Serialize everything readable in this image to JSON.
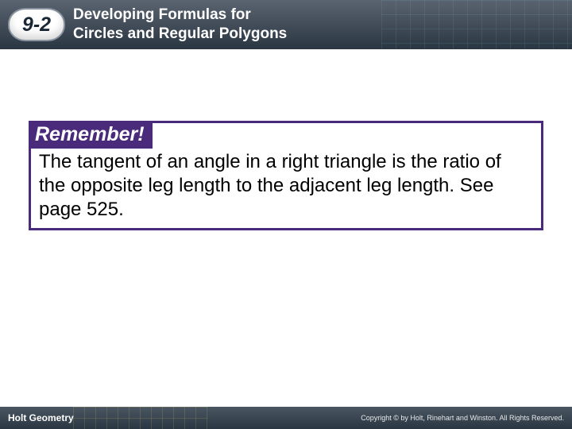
{
  "header": {
    "lesson_number": "9-2",
    "title_line1": "Developing Formulas for",
    "title_line2": "Circles and Regular Polygons",
    "bg_gradient_top": "#5a6470",
    "bg_gradient_bottom": "#2a3642"
  },
  "callout": {
    "label": "Remember!",
    "text": "The tangent of an angle in a right triangle is the ratio of the opposite leg length to the adjacent leg length. See page 525.",
    "border_color": "#4a2a7a",
    "label_bg": "#4a2a7a",
    "label_color": "#ffffff",
    "text_color": "#000000",
    "label_fontsize": 25,
    "text_fontsize": 24
  },
  "footer": {
    "left": "Holt Geometry",
    "right": "Copyright © by Holt, Rinehart and Winston. All Rights Reserved.",
    "bg_gradient_top": "#4a5662",
    "bg_gradient_bottom": "#2a3642"
  }
}
